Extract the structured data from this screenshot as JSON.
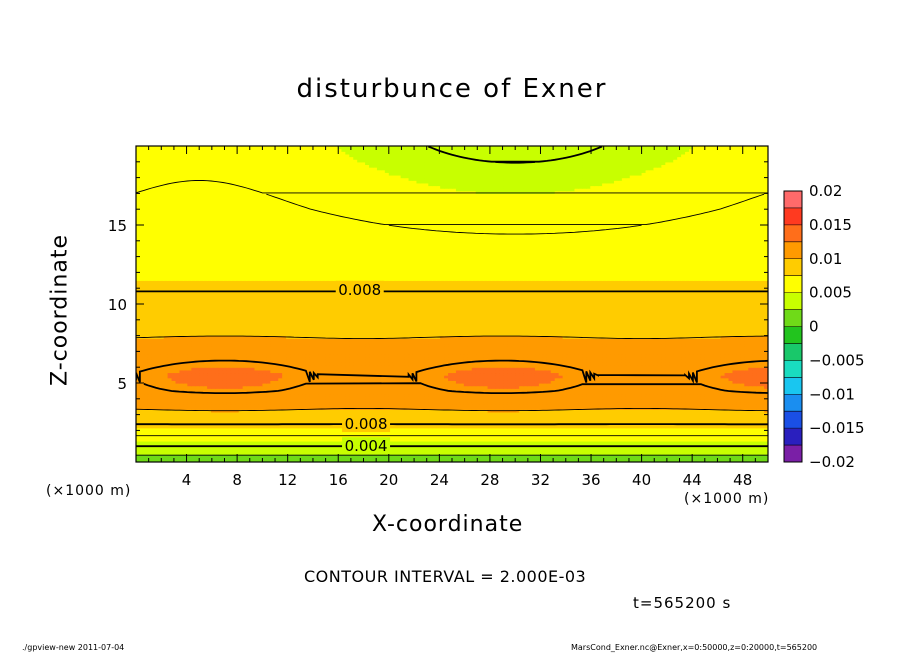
{
  "header": {
    "title": "disturbunce of Exner"
  },
  "footer": {
    "interval_label": "CONTOUR INTERVAL = 2.000E-03",
    "time_label": "t=565200 s",
    "program_label": "./gpview-new   2011-07-04",
    "file_label": "MarsCond_Exner.nc@Exner,x=0:50000,z=0:20000,t=565200"
  },
  "chart_data": {
    "type": "heatmap",
    "title": "disturbunce of Exner",
    "xlabel": "X-coordinate",
    "ylabel": "Z-coordinate",
    "x_unit_label": "(×1000 m)",
    "x_unit_label_right": "(×1000 m)",
    "xlim": [
      0,
      50
    ],
    "ylim": [
      0,
      20
    ],
    "x_ticks": [
      "4",
      "8",
      "12",
      "16",
      "20",
      "24",
      "28",
      "32",
      "36",
      "40",
      "44",
      "48"
    ],
    "y_ticks": [
      "5",
      "10",
      "15"
    ],
    "colorbar": {
      "min": -0.02,
      "max": 0.02,
      "step": 0.0025,
      "tick_labels": [
        "0.02",
        "0.015",
        "0.01",
        "0.005",
        "0",
        "−0.005",
        "−0.01",
        "−0.015",
        "−0.02"
      ],
      "colors": [
        "#7a1fa6",
        "#2a1fbe",
        "#1a4fe6",
        "#1a8ef0",
        "#19c6f0",
        "#19dcc0",
        "#19c86a",
        "#22c41e",
        "#6fda18",
        "#c8ff00",
        "#ffff00",
        "#ffcc00",
        "#ff9a00",
        "#ff6e1a",
        "#ff3a20",
        "#ff6a6a"
      ]
    },
    "contour_interval": 0.002,
    "contour_labels": [
      {
        "text": "0.008",
        "x": 17.7,
        "z": 10.9
      },
      {
        "text": "0.008",
        "x": 18.2,
        "z": 2.4
      },
      {
        "text": "0.004",
        "x": 18.2,
        "z": 1.0
      }
    ],
    "field_profile": [
      {
        "z": 0.0,
        "value": 0.0005
      },
      {
        "z": 1.0,
        "value": 0.004
      },
      {
        "z": 2.0,
        "value": 0.007
      },
      {
        "z": 3.0,
        "value": 0.0095
      },
      {
        "z": 4.5,
        "value": 0.0112
      },
      {
        "z": 5.5,
        "value": 0.0114
      },
      {
        "z": 7.0,
        "value": 0.0105
      },
      {
        "z": 8.5,
        "value": 0.0095
      },
      {
        "z": 10.5,
        "value": 0.0082
      },
      {
        "z": 12.0,
        "value": 0.0072
      },
      {
        "z": 14.0,
        "value": 0.0064
      },
      {
        "z": 16.0,
        "value": 0.0058
      },
      {
        "z": 18.0,
        "value": 0.0053
      },
      {
        "z": 20.0,
        "value": 0.0048
      }
    ]
  }
}
